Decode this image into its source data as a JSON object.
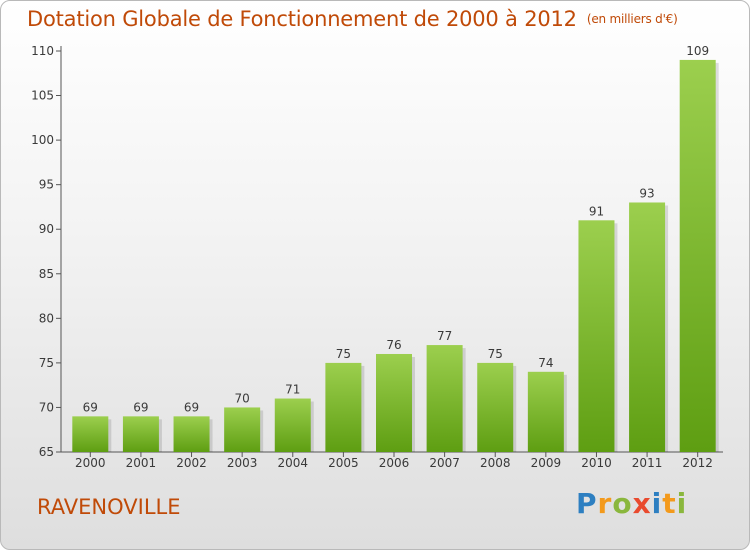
{
  "title": "Dotation Globale de Fonctionnement de 2000 à 2012",
  "subtitle": "(en milliers d'€)",
  "commune": "RAVENOVILLE",
  "brand": {
    "letters": [
      "P",
      "r",
      "o",
      "x",
      "i",
      "t",
      "i"
    ],
    "colors": [
      "#2d7fc1",
      "#f39a1c",
      "#8ab73d",
      "#e94a2e",
      "#2d7fc1",
      "#f39a1c",
      "#8ab73d"
    ]
  },
  "colors": {
    "bar_top": "#9ccf4e",
    "bar_bottom": "#5e9e12",
    "title": "#c04a08"
  },
  "chart_data": {
    "type": "bar",
    "categories": [
      "2000",
      "2001",
      "2002",
      "2003",
      "2004",
      "2005",
      "2006",
      "2007",
      "2008",
      "2009",
      "2010",
      "2011",
      "2012"
    ],
    "values": [
      69,
      69,
      69,
      70,
      71,
      75,
      76,
      77,
      75,
      74,
      91,
      93,
      109
    ],
    "title": "Dotation Globale de Fonctionnement de 2000 à 2012",
    "subtitle": "(en milliers d'€)",
    "xlabel": "",
    "ylabel": "",
    "ylim": [
      65,
      110
    ],
    "yticks": [
      65,
      70,
      75,
      80,
      85,
      90,
      95,
      100,
      105,
      110
    ],
    "grid": false,
    "legend": "none"
  }
}
